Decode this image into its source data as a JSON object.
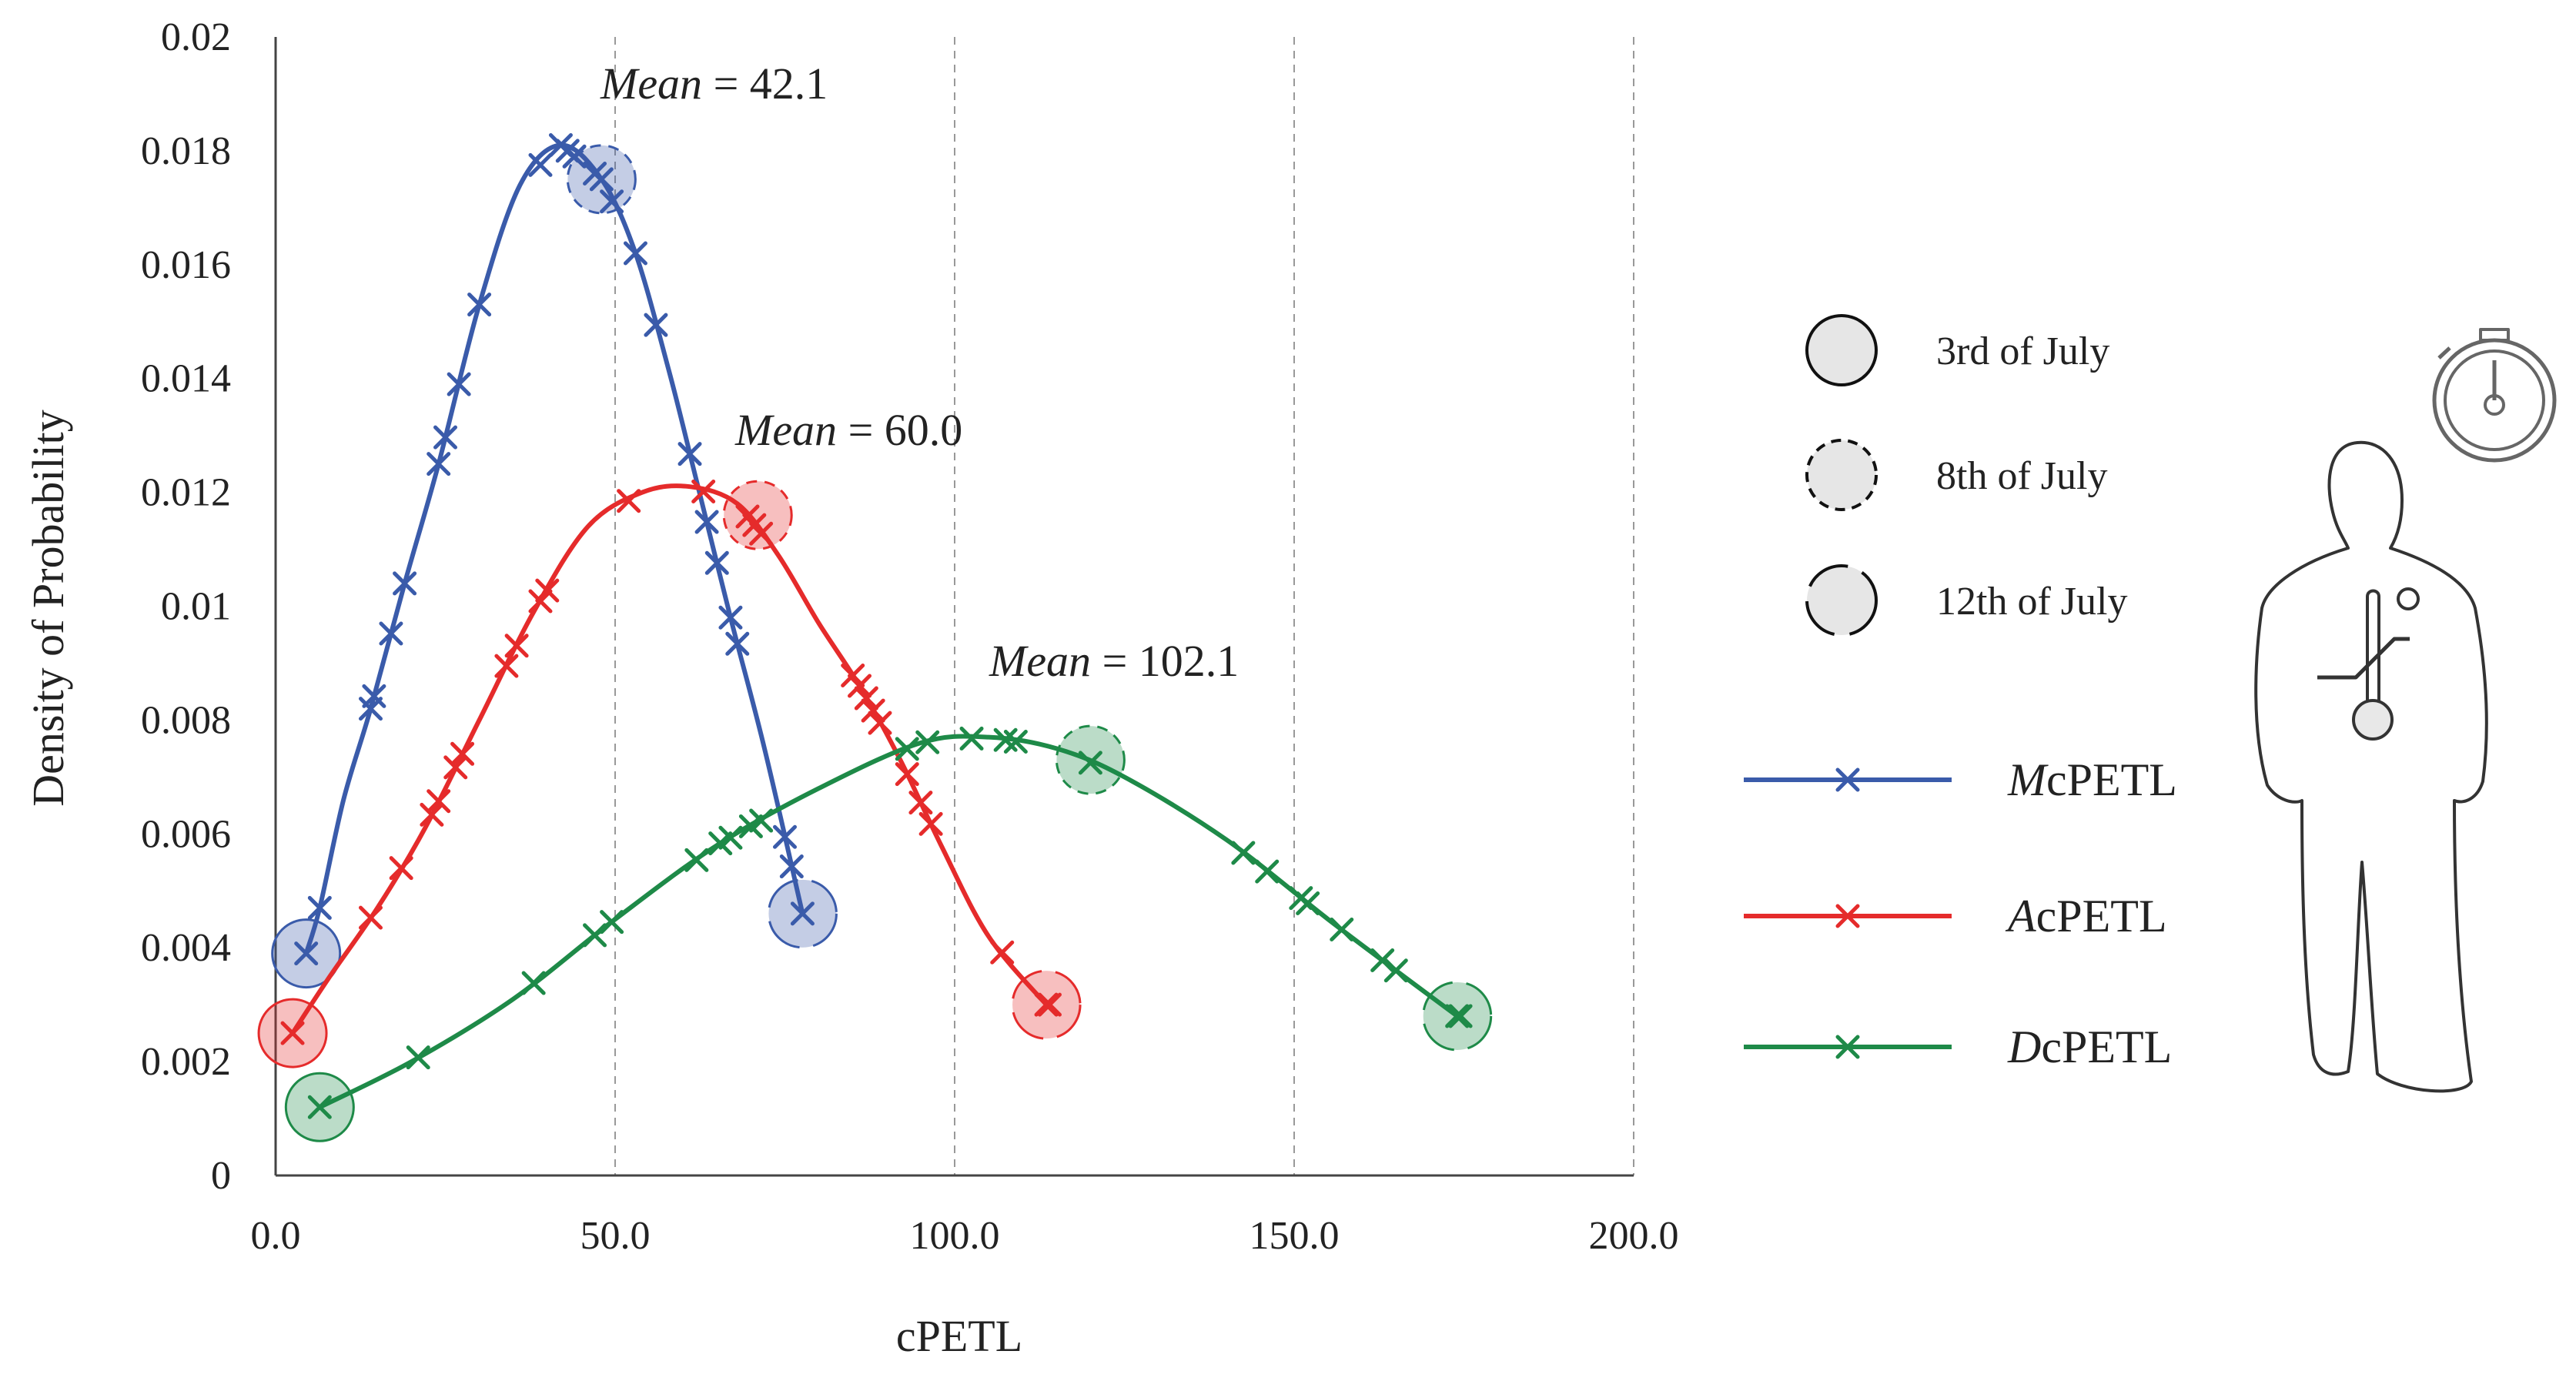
{
  "chart_data": {
    "type": "line",
    "title": "",
    "xlabel": "cPETL",
    "ylabel": "Density of Probability",
    "xlim": [
      0,
      200
    ],
    "ylim": [
      0,
      0.02
    ],
    "x_ticks": [
      "0.0",
      "50.0",
      "100.0",
      "150.0",
      "200.0"
    ],
    "y_ticks": [
      "0",
      "0.002",
      "0.004",
      "0.006",
      "0.008",
      "0.01",
      "0.012",
      "0.014",
      "0.016",
      "0.018",
      "0.02"
    ],
    "vertical_gridlines": [
      50,
      100,
      150,
      200
    ],
    "series": [
      {
        "name": "McPETL",
        "name_prefix": "M",
        "name_suffix": "cPETL",
        "color": "#3A5BAA",
        "mean": 42.1,
        "mean_label_prefix": "Mean",
        "mean_label_value": "= 42.1",
        "curve": [
          [
            4.5,
            0.0039
          ],
          [
            6.5,
            0.0047
          ],
          [
            10,
            0.0066
          ],
          [
            14,
            0.0082
          ],
          [
            19,
            0.0104
          ],
          [
            24,
            0.0125
          ],
          [
            30,
            0.0153
          ],
          [
            36,
            0.0174
          ],
          [
            42,
            0.0181
          ],
          [
            48,
            0.0175
          ],
          [
            53,
            0.0162
          ],
          [
            58,
            0.0141
          ],
          [
            62,
            0.0122
          ],
          [
            67,
            0.0098
          ],
          [
            72,
            0.0075
          ],
          [
            77.6,
            0.0046
          ]
        ],
        "points": [
          4.5,
          6.5,
          14,
          14.5,
          17,
          19,
          24,
          25,
          27,
          30,
          39,
          42,
          43,
          44,
          47,
          48,
          49.5,
          53,
          56,
          61,
          63.5,
          65,
          67,
          68,
          75,
          76,
          77.6
        ],
        "circles": [
          {
            "x": 4.5,
            "y": 0.0039,
            "date": "3rd of July"
          },
          {
            "x": 48,
            "y": 0.0175,
            "date": "8th of July"
          },
          {
            "x": 77.6,
            "y": 0.0046,
            "date": "12th of July"
          }
        ]
      },
      {
        "name": "AcPETL",
        "name_prefix": "A",
        "name_suffix": "cPETL",
        "color": "#E52B2B",
        "mean": 60.0,
        "mean_label_prefix": "Mean",
        "mean_label_value": "= 60.0",
        "curve": [
          [
            2.5,
            0.0025
          ],
          [
            8,
            0.0035
          ],
          [
            15,
            0.0047
          ],
          [
            22,
            0.0061
          ],
          [
            30,
            0.008
          ],
          [
            38,
            0.0099
          ],
          [
            46,
            0.0114
          ],
          [
            54,
            0.012
          ],
          [
            61,
            0.0121
          ],
          [
            68,
            0.0118
          ],
          [
            74,
            0.0109
          ],
          [
            80,
            0.0097
          ],
          [
            86,
            0.0086
          ],
          [
            92,
            0.0073
          ],
          [
            98,
            0.0058
          ],
          [
            105,
            0.0042
          ],
          [
            113.5,
            0.003
          ]
        ],
        "points": [
          2.5,
          14,
          18.5,
          23,
          24,
          26.5,
          27.5,
          34,
          35.5,
          39,
          40,
          52,
          63,
          69.5,
          70.5,
          71.5,
          85,
          86,
          87,
          88,
          89,
          93,
          95,
          96.5,
          107,
          113.5,
          114
        ],
        "circles": [
          {
            "x": 2.5,
            "y": 0.0025,
            "date": "3rd of July"
          },
          {
            "x": 71,
            "y": 0.0116,
            "date": "8th of July"
          },
          {
            "x": 113.5,
            "y": 0.003,
            "date": "12th of July"
          }
        ]
      },
      {
        "name": "DcPETL",
        "name_prefix": "D",
        "name_suffix": "cPETL",
        "color": "#1E8A48",
        "mean": 102.1,
        "mean_label_prefix": "Mean",
        "mean_label_value": "= 102.1",
        "curve": [
          [
            6.5,
            0.0012
          ],
          [
            20,
            0.002
          ],
          [
            35,
            0.0031
          ],
          [
            50,
            0.0045
          ],
          [
            65,
            0.0058
          ],
          [
            80,
            0.0068
          ],
          [
            95,
            0.0076
          ],
          [
            105,
            0.0077
          ],
          [
            115,
            0.0075
          ],
          [
            125,
            0.007
          ],
          [
            140,
            0.0059
          ],
          [
            155,
            0.0045
          ],
          [
            165,
            0.0036
          ],
          [
            174,
            0.0028
          ]
        ],
        "points": [
          6.5,
          21,
          38,
          47,
          49.5,
          62,
          65.5,
          67,
          70,
          71.5,
          93,
          96,
          102.5,
          107.5,
          109,
          120,
          142.5,
          146,
          151,
          152,
          157,
          163,
          165,
          174,
          174.5
        ],
        "circles": [
          {
            "x": 6.5,
            "y": 0.0012,
            "date": "3rd of July"
          },
          {
            "x": 120,
            "y": 0.0073,
            "date": "8th of July"
          },
          {
            "x": 174,
            "y": 0.0028,
            "date": "12th of July"
          }
        ]
      }
    ],
    "date_legend": [
      {
        "label": "3rd of July",
        "style": "solid"
      },
      {
        "label": "8th of July",
        "style": "dashed"
      },
      {
        "label": "12th of July",
        "style": "broken"
      }
    ]
  }
}
